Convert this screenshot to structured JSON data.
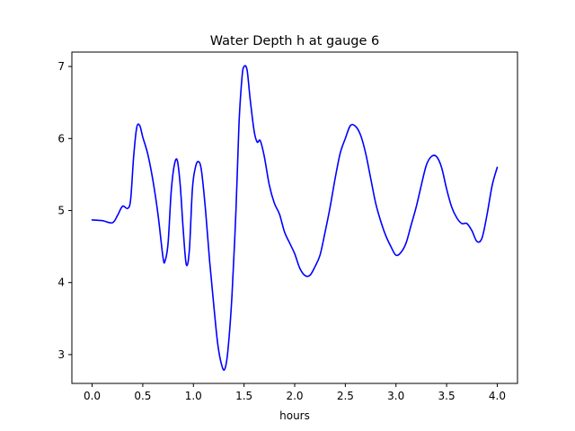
{
  "chart_data": {
    "type": "line",
    "title": "Water Depth h at gauge 6",
    "xlabel": "hours",
    "ylabel": "",
    "xlim": [
      -0.2,
      4.2
    ],
    "ylim": [
      2.6,
      7.2
    ],
    "xticks": [
      0.0,
      0.5,
      1.0,
      1.5,
      2.0,
      2.5,
      3.0,
      3.5,
      4.0
    ],
    "xtick_labels": [
      "0.0",
      "0.5",
      "1.0",
      "1.5",
      "2.0",
      "2.5",
      "3.0",
      "3.5",
      "4.0"
    ],
    "yticks": [
      3,
      4,
      5,
      6,
      7
    ],
    "ytick_labels": [
      "3",
      "4",
      "5",
      "6",
      "7"
    ],
    "grid": false,
    "series": [
      {
        "color": "#0000ff",
        "x": [
          0.0,
          0.1,
          0.2,
          0.25,
          0.3,
          0.35,
          0.38,
          0.41,
          0.44,
          0.47,
          0.5,
          0.55,
          0.6,
          0.65,
          0.7,
          0.72,
          0.75,
          0.78,
          0.81,
          0.84,
          0.87,
          0.9,
          0.93,
          0.96,
          0.99,
          1.02,
          1.05,
          1.08,
          1.12,
          1.16,
          1.2,
          1.24,
          1.28,
          1.31,
          1.34,
          1.38,
          1.42,
          1.45,
          1.48,
          1.5,
          1.53,
          1.56,
          1.6,
          1.63,
          1.66,
          1.7,
          1.75,
          1.8,
          1.85,
          1.9,
          1.95,
          2.0,
          2.05,
          2.1,
          2.15,
          2.2,
          2.25,
          2.3,
          2.35,
          2.4,
          2.45,
          2.5,
          2.55,
          2.6,
          2.65,
          2.7,
          2.75,
          2.8,
          2.85,
          2.9,
          2.95,
          3.0,
          3.05,
          3.1,
          3.15,
          3.2,
          3.25,
          3.3,
          3.35,
          3.4,
          3.45,
          3.5,
          3.55,
          3.6,
          3.65,
          3.7,
          3.75,
          3.8,
          3.85,
          3.9,
          3.95,
          4.0
        ],
        "y": [
          4.87,
          4.86,
          4.83,
          4.93,
          5.06,
          5.03,
          5.15,
          5.75,
          6.15,
          6.18,
          6.02,
          5.78,
          5.42,
          4.95,
          4.35,
          4.3,
          4.55,
          5.25,
          5.62,
          5.7,
          5.35,
          4.72,
          4.25,
          4.45,
          5.3,
          5.6,
          5.68,
          5.55,
          5.0,
          4.3,
          3.7,
          3.15,
          2.85,
          2.8,
          3.05,
          3.8,
          5.0,
          6.2,
          6.85,
          7.0,
          6.95,
          6.55,
          6.1,
          5.95,
          5.97,
          5.75,
          5.35,
          5.1,
          4.95,
          4.7,
          4.55,
          4.4,
          4.2,
          4.1,
          4.1,
          4.22,
          4.38,
          4.7,
          5.05,
          5.45,
          5.8,
          6.0,
          6.18,
          6.17,
          6.05,
          5.8,
          5.45,
          5.1,
          4.85,
          4.65,
          4.5,
          4.38,
          4.42,
          4.55,
          4.8,
          5.05,
          5.35,
          5.63,
          5.75,
          5.75,
          5.6,
          5.3,
          5.05,
          4.9,
          4.82,
          4.82,
          4.72,
          4.57,
          4.62,
          4.95,
          5.35,
          5.6
        ]
      }
    ]
  }
}
